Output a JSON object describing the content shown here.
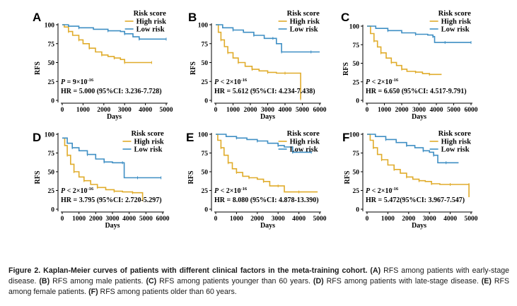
{
  "figure": {
    "y_axis_label": "RFS",
    "x_axis_label": "Days",
    "legend_title": "Risk score",
    "legend_high": "High risk",
    "legend_low": "Low risk",
    "colors": {
      "high": "#e0ac2b",
      "low": "#3f8fc4",
      "axis": "#000000"
    }
  },
  "chart_data": [
    {
      "type": "line",
      "panel_label": "A",
      "xlabel": "Days",
      "ylabel": "RFS",
      "xlim": [
        0,
        5000
      ],
      "ylim": [
        0,
        100
      ],
      "x_ticks": [
        0,
        1000,
        2000,
        3000,
        4000,
        5000
      ],
      "y_ticks": [
        0,
        25,
        50,
        75,
        100
      ],
      "p_value": "P = 9×10",
      "p_exp": "-16",
      "hr_text": "HR = 5.000 (95%CI: 3.236-7.728)",
      "series": [
        {
          "name": "High risk",
          "color": "#e0ac2b",
          "points": [
            [
              0,
              100
            ],
            [
              100,
              97
            ],
            [
              300,
              91
            ],
            [
              500,
              86
            ],
            [
              800,
              80
            ],
            [
              1000,
              75
            ],
            [
              1300,
              69
            ],
            [
              1600,
              64
            ],
            [
              1900,
              60
            ],
            [
              2200,
              58
            ],
            [
              2500,
              56
            ],
            [
              2800,
              54
            ],
            [
              3000,
              50
            ],
            [
              3500,
              50
            ],
            [
              4300,
              50
            ]
          ]
        },
        {
          "name": "Low risk",
          "color": "#3f8fc4",
          "points": [
            [
              0,
              100
            ],
            [
              300,
              98
            ],
            [
              800,
              96
            ],
            [
              1500,
              94
            ],
            [
              2200,
              92
            ],
            [
              2800,
              91
            ],
            [
              3000,
              88
            ],
            [
              3400,
              84
            ],
            [
              3700,
              81
            ],
            [
              4300,
              81
            ],
            [
              5000,
              81
            ]
          ]
        }
      ]
    },
    {
      "type": "line",
      "panel_label": "B",
      "xlabel": "Days",
      "ylabel": "RFS",
      "xlim": [
        0,
        6000
      ],
      "ylim": [
        0,
        100
      ],
      "x_ticks": [
        0,
        1000,
        2000,
        3000,
        4000,
        5000,
        6000
      ],
      "y_ticks": [
        0,
        25,
        50,
        75,
        100
      ],
      "p_value": "P < 2×10",
      "p_exp": "-16",
      "hr_text": "HR = 5.612 (95%CI: 4.234-7.438)",
      "series": [
        {
          "name": "High risk",
          "color": "#e0ac2b",
          "points": [
            [
              0,
              100
            ],
            [
              150,
              90
            ],
            [
              300,
              80
            ],
            [
              500,
              71
            ],
            [
              700,
              63
            ],
            [
              1000,
              56
            ],
            [
              1300,
              50
            ],
            [
              1700,
              45
            ],
            [
              2100,
              41
            ],
            [
              2500,
              39
            ],
            [
              3000,
              37
            ],
            [
              3500,
              36
            ],
            [
              4000,
              36
            ],
            [
              4900,
              36
            ],
            [
              4900,
              2
            ]
          ]
        },
        {
          "name": "Low risk",
          "color": "#3f8fc4",
          "points": [
            [
              0,
              100
            ],
            [
              400,
              96
            ],
            [
              1000,
              93
            ],
            [
              1600,
              90
            ],
            [
              2200,
              86
            ],
            [
              2800,
              82
            ],
            [
              3300,
              82
            ],
            [
              3500,
              75
            ],
            [
              3800,
              64
            ],
            [
              4500,
              64
            ],
            [
              5500,
              64
            ],
            [
              6000,
              64
            ]
          ]
        }
      ]
    },
    {
      "type": "line",
      "panel_label": "C",
      "xlabel": "Days",
      "ylabel": "RFS",
      "xlim": [
        0,
        6000
      ],
      "ylim": [
        0,
        100
      ],
      "x_ticks": [
        0,
        1000,
        2000,
        3000,
        4000,
        5000,
        6000
      ],
      "y_ticks": [
        0,
        25,
        50,
        75,
        100
      ],
      "p_value": "P < 2×10",
      "p_exp": "-16",
      "hr_text": "HR = 6.650 (95%CI: 4.517-9.791)",
      "series": [
        {
          "name": "High risk",
          "color": "#e0ac2b",
          "points": [
            [
              0,
              100
            ],
            [
              200,
              90
            ],
            [
              400,
              80
            ],
            [
              600,
              72
            ],
            [
              800,
              64
            ],
            [
              1100,
              57
            ],
            [
              1400,
              51
            ],
            [
              1700,
              47
            ],
            [
              2000,
              42
            ],
            [
              2300,
              39
            ],
            [
              2800,
              38
            ],
            [
              3200,
              36
            ],
            [
              3600,
              35
            ],
            [
              4300,
              35
            ]
          ]
        },
        {
          "name": "Low risk",
          "color": "#3f8fc4",
          "points": [
            [
              0,
              100
            ],
            [
              500,
              97
            ],
            [
              1200,
              94
            ],
            [
              2000,
              91
            ],
            [
              2800,
              89
            ],
            [
              3500,
              88
            ],
            [
              3800,
              86
            ],
            [
              3900,
              78
            ],
            [
              4500,
              78
            ],
            [
              5500,
              78
            ],
            [
              6000,
              78
            ]
          ]
        }
      ]
    },
    {
      "type": "line",
      "panel_label": "D",
      "xlabel": "Days",
      "ylabel": "RFS",
      "xlim": [
        0,
        6000
      ],
      "ylim": [
        0,
        100
      ],
      "x_ticks": [
        0,
        1000,
        2000,
        3000,
        4000,
        5000,
        6000
      ],
      "y_ticks": [
        0,
        25,
        50,
        75,
        100
      ],
      "p_value": "P < 2×10",
      "p_exp": "-16",
      "hr_text": "HR = 3.795 (95%CI: 2.720-5.297)",
      "series": [
        {
          "name": "High risk",
          "color": "#e0ac2b",
          "points": [
            [
              0,
              95
            ],
            [
              150,
              85
            ],
            [
              300,
              72
            ],
            [
              500,
              60
            ],
            [
              700,
              50
            ],
            [
              1000,
              43
            ],
            [
              1300,
              38
            ],
            [
              1700,
              33
            ],
            [
              2100,
              29
            ],
            [
              2600,
              26
            ],
            [
              3100,
              24
            ],
            [
              3600,
              23
            ],
            [
              4200,
              22
            ],
            [
              4800,
              22
            ],
            [
              4800,
              12
            ]
          ]
        },
        {
          "name": "Low risk",
          "color": "#3f8fc4",
          "points": [
            [
              0,
              95
            ],
            [
              300,
              88
            ],
            [
              600,
              82
            ],
            [
              1000,
              78
            ],
            [
              1500,
              73
            ],
            [
              2000,
              67
            ],
            [
              2500,
              63
            ],
            [
              3000,
              62
            ],
            [
              3600,
              62
            ],
            [
              3700,
              42
            ],
            [
              4500,
              42
            ],
            [
              5500,
              42
            ],
            [
              5900,
              42
            ]
          ]
        }
      ]
    },
    {
      "type": "line",
      "panel_label": "E",
      "xlabel": "Days",
      "ylabel": "RFS",
      "xlim": [
        0,
        5000
      ],
      "ylim": [
        0,
        100
      ],
      "x_ticks": [
        0,
        1000,
        2000,
        3000,
        4000,
        5000
      ],
      "y_ticks": [
        0,
        25,
        50,
        75,
        100
      ],
      "p_value": "P < 2×10",
      "p_exp": "-16",
      "hr_text": "HR = 8.080 (95%CI: 4.878-13.390)",
      "series": [
        {
          "name": "High risk",
          "color": "#e0ac2b",
          "points": [
            [
              0,
              100
            ],
            [
              100,
              92
            ],
            [
              250,
              82
            ],
            [
              400,
              72
            ],
            [
              600,
              62
            ],
            [
              800,
              54
            ],
            [
              1000,
              49
            ],
            [
              1300,
              44
            ],
            [
              1600,
              42
            ],
            [
              2000,
              40
            ],
            [
              2300,
              37
            ],
            [
              2600,
              31
            ],
            [
              3000,
              31
            ],
            [
              3300,
              23
            ],
            [
              4000,
              23
            ],
            [
              4900,
              23
            ]
          ]
        },
        {
          "name": "Low risk",
          "color": "#3f8fc4",
          "points": [
            [
              0,
              100
            ],
            [
              500,
              97
            ],
            [
              1000,
              95
            ],
            [
              1500,
              93
            ],
            [
              2000,
              91
            ],
            [
              2500,
              88
            ],
            [
              3000,
              85
            ],
            [
              3300,
              83
            ],
            [
              3700,
              76
            ],
            [
              4200,
              76
            ],
            [
              4600,
              76
            ]
          ]
        }
      ]
    },
    {
      "type": "line",
      "panel_label": "F",
      "xlabel": "Days",
      "ylabel": "RFS",
      "xlim": [
        0,
        5000
      ],
      "ylim": [
        0,
        100
      ],
      "x_ticks": [
        0,
        1000,
        2000,
        3000,
        4000,
        5000
      ],
      "y_ticks": [
        0,
        25,
        50,
        75,
        100
      ],
      "p_value": "P < 2×10",
      "p_exp": "-16",
      "hr_text": "HR = 5.472(95%CI: 3.967-7.547)",
      "series": [
        {
          "name": "High risk",
          "color": "#e0ac2b",
          "points": [
            [
              0,
              100
            ],
            [
              150,
              92
            ],
            [
              300,
              82
            ],
            [
              500,
              73
            ],
            [
              700,
              66
            ],
            [
              1000,
              59
            ],
            [
              1300,
              53
            ],
            [
              1600,
              48
            ],
            [
              1900,
              43
            ],
            [
              2200,
              40
            ],
            [
              2500,
              38
            ],
            [
              2800,
              37
            ],
            [
              3100,
              34
            ],
            [
              3500,
              33
            ],
            [
              4000,
              33
            ],
            [
              4700,
              33
            ],
            [
              4900,
              33
            ],
            [
              4900,
              16
            ]
          ]
        },
        {
          "name": "Low risk",
          "color": "#3f8fc4",
          "points": [
            [
              0,
              100
            ],
            [
              400,
              97
            ],
            [
              900,
              93
            ],
            [
              1400,
              89
            ],
            [
              1900,
              85
            ],
            [
              2300,
              82
            ],
            [
              2700,
              78
            ],
            [
              3000,
              76
            ],
            [
              3200,
              72
            ],
            [
              3400,
              62
            ],
            [
              3800,
              62
            ],
            [
              4400,
              62
            ]
          ]
        }
      ]
    }
  ],
  "caption": {
    "lead": "Figure 2. Kaplan-Meier curves of patients with different clinical factors in the meta-training cohort.",
    "parts": [
      {
        "tag": "(A)",
        "text": " RFS among patients with early-stage disease. "
      },
      {
        "tag": "(B)",
        "text": " RFS among male patients. "
      },
      {
        "tag": "(C)",
        "text": " RFS among patients younger than 60 years. "
      },
      {
        "tag": "(D)",
        "text": " RFS among patients with late-stage disease. "
      },
      {
        "tag": "(E)",
        "text": " RFS among female patients. "
      },
      {
        "tag": "(F)",
        "text": " RFS among patients older than 60 years."
      }
    ]
  }
}
